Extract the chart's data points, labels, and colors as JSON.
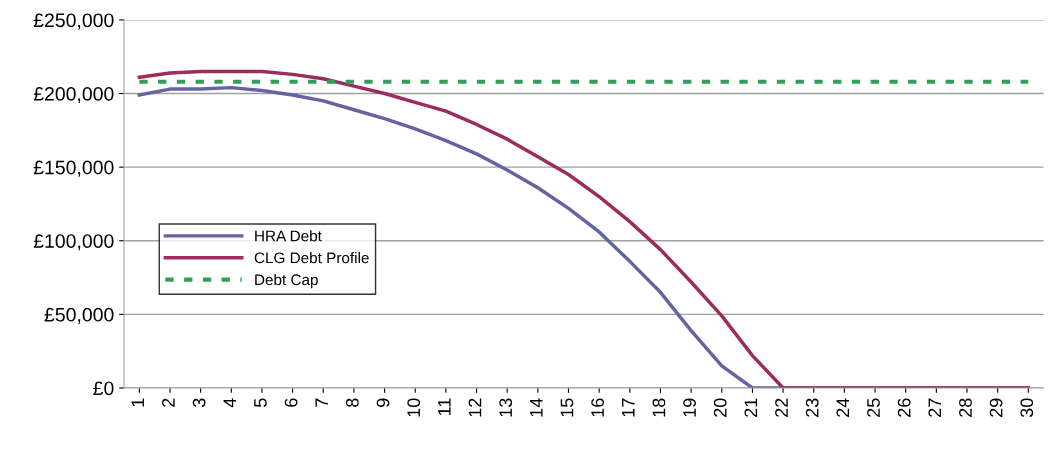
{
  "chart_data": {
    "type": "line",
    "categories": [
      "1",
      "2",
      "3",
      "4",
      "5",
      "6",
      "7",
      "8",
      "9",
      "10",
      "11",
      "12",
      "13",
      "14",
      "15",
      "16",
      "17",
      "18",
      "19",
      "20",
      "21",
      "22",
      "23",
      "24",
      "25",
      "26",
      "27",
      "28",
      "29",
      "30"
    ],
    "series": [
      {
        "name": "HRA Debt",
        "color": "#6464a0",
        "line_style": "solid",
        "values": [
          199000,
          203000,
          203000,
          204000,
          202000,
          199000,
          195000,
          189000,
          183000,
          176000,
          168000,
          159000,
          148000,
          136000,
          122000,
          106000,
          86000,
          65000,
          39000,
          15000,
          0,
          0,
          0,
          0,
          0,
          0,
          0,
          0,
          0,
          0
        ]
      },
      {
        "name": "CLG Debt Profile",
        "color": "#9b2c5e",
        "line_style": "solid",
        "values": [
          211000,
          214000,
          215000,
          215000,
          215000,
          213000,
          210000,
          205000,
          200000,
          194000,
          188000,
          179000,
          169000,
          157000,
          145000,
          130000,
          113000,
          94000,
          72000,
          49000,
          22000,
          0,
          0,
          0,
          0,
          0,
          0,
          0,
          0,
          0
        ]
      },
      {
        "name": "Debt Cap",
        "color": "#2ea05a",
        "line_style": "dashed",
        "values": [
          208000,
          208000,
          208000,
          208000,
          208000,
          208000,
          208000,
          208000,
          208000,
          208000,
          208000,
          208000,
          208000,
          208000,
          208000,
          208000,
          208000,
          208000,
          208000,
          208000,
          208000,
          208000,
          208000,
          208000,
          208000,
          208000,
          208000,
          208000,
          208000,
          208000
        ]
      }
    ],
    "ylim": [
      0,
      250000
    ],
    "yticks": [
      {
        "value": 0,
        "label": "£0"
      },
      {
        "value": 50000,
        "label": "£50,000"
      },
      {
        "value": 100000,
        "label": "£100,000"
      },
      {
        "value": 150000,
        "label": "£150,000"
      },
      {
        "value": 200000,
        "label": "£200,000"
      },
      {
        "value": 250000,
        "label": "£250,000"
      }
    ],
    "grid": "y",
    "legend": "center left",
    "marker": "none"
  }
}
